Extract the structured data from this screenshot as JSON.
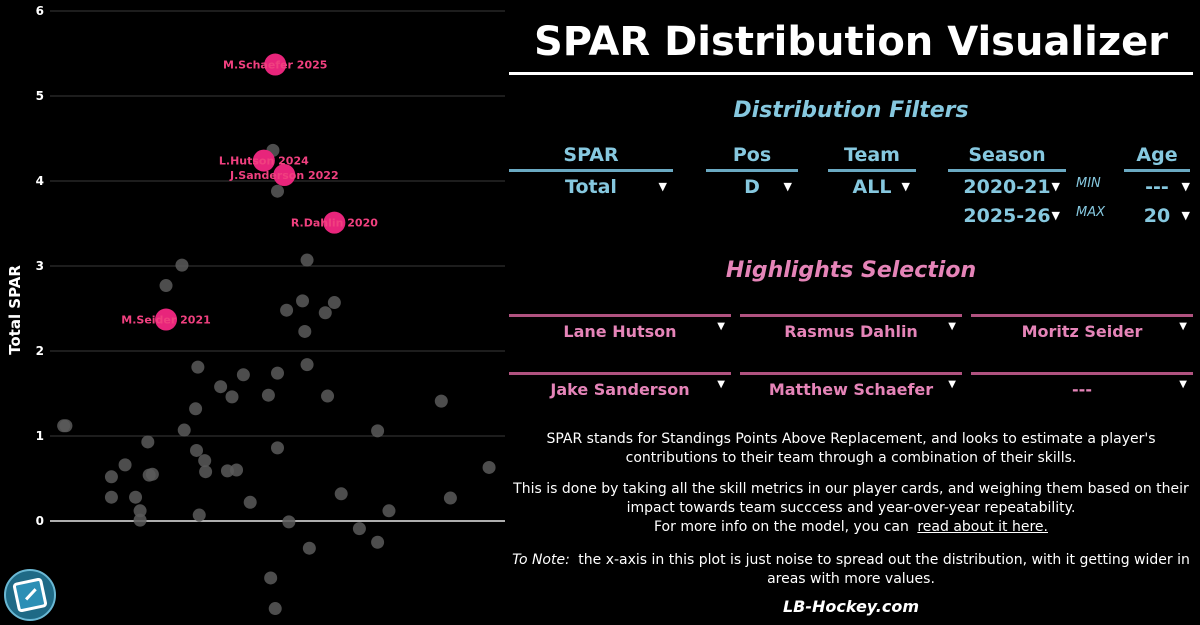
{
  "app": {
    "title": "SPAR Distribution Visualizer",
    "footer": "LB-Hockey.com"
  },
  "filters": {
    "heading": "Distribution Filters",
    "spar": {
      "label": "SPAR",
      "value": "Total"
    },
    "pos": {
      "label": "Pos",
      "value": "D"
    },
    "team": {
      "label": "Team",
      "value": "ALL"
    },
    "season": {
      "label": "Season",
      "min_value": "2020-21",
      "max_value": "2025-26"
    },
    "min_label": "MIN",
    "max_label": "MAX",
    "age": {
      "label": "Age",
      "min_value": "---",
      "max_value": "20"
    }
  },
  "highlights": {
    "heading": "Highlights Selection",
    "slots": [
      "Lane Hutson",
      "Rasmus Dahlin",
      "Moritz Seider",
      "Jake Sanderson",
      "Matthew Schaefer",
      "---"
    ]
  },
  "description": {
    "para1": "SPAR stands for Standings Points Above Replacement, and looks to estimate a player's contributions to their team through a combination of their skills.",
    "para2a": "This is done by taking all the skill metrics in our player cards, and weighing them based on their impact towards team succcess and year-over-year repeatability.",
    "para2b": "For more info on the model, you can",
    "link": "read about it here.",
    "note_label": "To Note:",
    "note_text": "the x-axis in this plot is just noise to spread out the distribution, with it getting wider in areas with more values."
  },
  "icons": {
    "logo": "lb-hockey-logo-icon",
    "dropdown": "chevron-down-icon"
  },
  "colors": {
    "accent_blue": "#86c8df",
    "accent_pink": "#e584b8",
    "highlight": "#e8257b",
    "point": "#5a5a5a"
  },
  "chart_data": {
    "type": "scatter",
    "ylabel": "Total SPAR",
    "ylim": [
      -1.1,
      6.0
    ],
    "yticks": [
      0,
      1,
      2,
      3,
      4,
      5,
      6
    ],
    "grid": true,
    "x_is_noise": true,
    "points": [
      {
        "x": 0.03,
        "y": 1.12
      },
      {
        "x": 0.035,
        "y": 1.12
      },
      {
        "x": 0.135,
        "y": 0.52
      },
      {
        "x": 0.135,
        "y": 0.28
      },
      {
        "x": 0.165,
        "y": 0.66
      },
      {
        "x": 0.188,
        "y": 0.28
      },
      {
        "x": 0.198,
        "y": 0.12
      },
      {
        "x": 0.198,
        "y": 0.01
      },
      {
        "x": 0.215,
        "y": 0.93
      },
      {
        "x": 0.218,
        "y": 0.54
      },
      {
        "x": 0.225,
        "y": 0.55
      },
      {
        "x": 0.255,
        "y": 2.77
      },
      {
        "x": 0.29,
        "y": 3.01
      },
      {
        "x": 0.295,
        "y": 1.07
      },
      {
        "x": 0.325,
        "y": 1.81
      },
      {
        "x": 0.32,
        "y": 1.32
      },
      {
        "x": 0.322,
        "y": 0.83
      },
      {
        "x": 0.328,
        "y": 0.07
      },
      {
        "x": 0.34,
        "y": 0.71
      },
      {
        "x": 0.342,
        "y": 0.58
      },
      {
        "x": 0.375,
        "y": 1.58
      },
      {
        "x": 0.4,
        "y": 1.46
      },
      {
        "x": 0.39,
        "y": 0.59
      },
      {
        "x": 0.41,
        "y": 0.6
      },
      {
        "x": 0.425,
        "y": 1.72
      },
      {
        "x": 0.44,
        "y": 0.22
      },
      {
        "x": 0.48,
        "y": 1.48
      },
      {
        "x": 0.485,
        "y": -0.67
      },
      {
        "x": 0.49,
        "y": 4.36
      },
      {
        "x": 0.5,
        "y": 3.88
      },
      {
        "x": 0.5,
        "y": 1.74
      },
      {
        "x": 0.5,
        "y": 0.86
      },
      {
        "x": 0.495,
        "y": -1.03
      },
      {
        "x": 0.52,
        "y": 2.48
      },
      {
        "x": 0.525,
        "y": -0.01
      },
      {
        "x": 0.555,
        "y": 2.59
      },
      {
        "x": 0.565,
        "y": 3.07
      },
      {
        "x": 0.56,
        "y": 2.23
      },
      {
        "x": 0.565,
        "y": 1.84
      },
      {
        "x": 0.57,
        "y": -0.32
      },
      {
        "x": 0.605,
        "y": 2.45
      },
      {
        "x": 0.625,
        "y": 2.57
      },
      {
        "x": 0.61,
        "y": 1.47
      },
      {
        "x": 0.64,
        "y": 0.32
      },
      {
        "x": 0.68,
        "y": -0.09
      },
      {
        "x": 0.72,
        "y": -0.25
      },
      {
        "x": 0.72,
        "y": 1.06
      },
      {
        "x": 0.745,
        "y": 0.12
      },
      {
        "x": 0.86,
        "y": 1.41
      },
      {
        "x": 0.88,
        "y": 0.27
      },
      {
        "x": 0.965,
        "y": 0.63
      }
    ],
    "highlights": [
      {
        "label": "M.Schaefer 2025",
        "x": 0.495,
        "y": 5.37
      },
      {
        "label": "L.Hutson 2024",
        "x": 0.47,
        "y": 4.24
      },
      {
        "label": "J.Sanderson 2022",
        "x": 0.515,
        "y": 4.07
      },
      {
        "label": "R.Dahlin 2020",
        "x": 0.625,
        "y": 3.51
      },
      {
        "label": "M.Seider 2021",
        "x": 0.255,
        "y": 2.37
      }
    ]
  }
}
